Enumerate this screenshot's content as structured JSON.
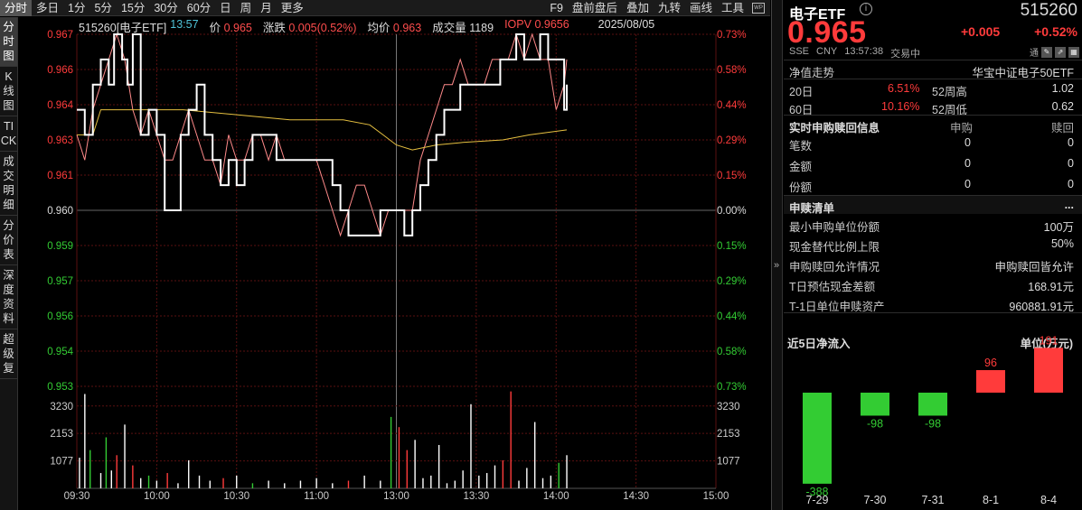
{
  "toolbar": {
    "left_tabs": [
      "分时",
      "多日",
      "1分",
      "5分",
      "15分",
      "30分",
      "60分",
      "日",
      "周",
      "月",
      "更多"
    ],
    "active_left": 0,
    "right_tabs": [
      "F9",
      "盘前盘后",
      "叠加",
      "九转",
      "画线",
      "工具"
    ],
    "wp_icon": "WP"
  },
  "side_tabs": [
    {
      "label": "分时图",
      "active": true
    },
    {
      "label": "K线图",
      "active": false
    },
    {
      "label": "TICK",
      "active": false
    },
    {
      "label": "成交明细",
      "active": false
    },
    {
      "label": "分价表",
      "active": false
    },
    {
      "label": "深度资料",
      "active": false
    },
    {
      "label": "超级复",
      "active": false
    }
  ],
  "infobar": {
    "code_name": "515260[电子ETF]",
    "time": "13:57",
    "price_label": "价",
    "price": "0.965",
    "change_label": "涨跌",
    "change": "0.005(0.52%)",
    "avg_label": "均价",
    "avg": "0.963",
    "volume_label": "成交量",
    "volume": "1189",
    "iopv_label": "IOPV",
    "iopv": "0.9656",
    "date": "2025/08/05"
  },
  "colors": {
    "up": "#ff3b3b",
    "down": "#33cc33",
    "price_line": "#ffffff",
    "iopv_line": "#ff8a8a",
    "avg_line": "#e6c040",
    "grid": "#5a1010"
  },
  "chart_data": [
    {
      "type": "line",
      "name": "intraday-price",
      "ylim": [
        0.953,
        0.967
      ],
      "prev_close": 0.96,
      "left_ticks": [
        "0.967",
        "0.966",
        "0.964",
        "0.963",
        "0.961",
        "0.960",
        "0.959",
        "0.957",
        "0.956",
        "0.954",
        "0.953"
      ],
      "right_ticks": [
        "0.73%",
        "0.58%",
        "0.44%",
        "0.29%",
        "0.15%",
        "0.00%",
        "0.15%",
        "0.29%",
        "0.44%",
        "0.58%",
        "0.73%"
      ],
      "x_ticks": [
        "09:30",
        "10:00",
        "10:30",
        "11:00",
        "13:00",
        "13:30",
        "14:00",
        "14:30",
        "15:00"
      ],
      "series": [
        {
          "name": "价",
          "points": [
            [
              0,
              0.964
            ],
            [
              3,
              0.963
            ],
            [
              6,
              0.965
            ],
            [
              9,
              0.966
            ],
            [
              12,
              0.965
            ],
            [
              14,
              0.967
            ],
            [
              17,
              0.966
            ],
            [
              19,
              0.965
            ],
            [
              21,
              0.967
            ],
            [
              24,
              0.963
            ],
            [
              27,
              0.964
            ],
            [
              30,
              0.963
            ],
            [
              33,
              0.96
            ],
            [
              36,
              0.96
            ],
            [
              39,
              0.963
            ],
            [
              42,
              0.964
            ],
            [
              45,
              0.965
            ],
            [
              48,
              0.963
            ],
            [
              51,
              0.962
            ],
            [
              54,
              0.961
            ],
            [
              57,
              0.962
            ],
            [
              60,
              0.961
            ],
            [
              63,
              0.962
            ],
            [
              66,
              0.963
            ],
            [
              69,
              0.963
            ],
            [
              72,
              0.963
            ],
            [
              75,
              0.962
            ],
            [
              78,
              0.962
            ],
            [
              81,
              0.962
            ],
            [
              84,
              0.962
            ],
            [
              87,
              0.962
            ],
            [
              90,
              0.962
            ],
            [
              93,
              0.962
            ],
            [
              96,
              0.961
            ],
            [
              99,
              0.96
            ],
            [
              102,
              0.959
            ],
            [
              105,
              0.959
            ],
            [
              108,
              0.959
            ],
            [
              111,
              0.959
            ],
            [
              114,
              0.96
            ],
            [
              117,
              0.96
            ],
            [
              120,
              0.96
            ],
            [
              123,
              0.959
            ],
            [
              126,
              0.96
            ],
            [
              129,
              0.961
            ],
            [
              132,
              0.962
            ],
            [
              135,
              0.963
            ],
            [
              138,
              0.964
            ],
            [
              141,
              0.964
            ],
            [
              144,
              0.965
            ],
            [
              147,
              0.965
            ],
            [
              150,
              0.965
            ],
            [
              153,
              0.965
            ],
            [
              156,
              0.965
            ],
            [
              159,
              0.966
            ],
            [
              162,
              0.966
            ],
            [
              165,
              0.967
            ],
            [
              168,
              0.966
            ],
            [
              171,
              0.966
            ],
            [
              174,
              0.967
            ],
            [
              177,
              0.966
            ],
            [
              180,
              0.966
            ],
            [
              183,
              0.964
            ],
            [
              184,
              0.965
            ]
          ]
        },
        {
          "name": "IOPV",
          "points": [
            [
              0,
              0.963
            ],
            [
              3,
              0.962
            ],
            [
              6,
              0.964
            ],
            [
              9,
              0.965
            ],
            [
              12,
              0.966
            ],
            [
              15,
              0.967
            ],
            [
              18,
              0.966
            ],
            [
              21,
              0.964
            ],
            [
              24,
              0.963
            ],
            [
              27,
              0.964
            ],
            [
              30,
              0.963
            ],
            [
              33,
              0.962
            ],
            [
              36,
              0.962
            ],
            [
              39,
              0.963
            ],
            [
              42,
              0.964
            ],
            [
              45,
              0.963
            ],
            [
              48,
              0.962
            ],
            [
              51,
              0.962
            ],
            [
              54,
              0.961
            ],
            [
              57,
              0.963
            ],
            [
              60,
              0.962
            ],
            [
              63,
              0.962
            ],
            [
              66,
              0.963
            ],
            [
              69,
              0.963
            ],
            [
              72,
              0.962
            ],
            [
              75,
              0.963
            ],
            [
              78,
              0.962
            ],
            [
              81,
              0.962
            ],
            [
              84,
              0.962
            ],
            [
              87,
              0.962
            ],
            [
              90,
              0.962
            ],
            [
              93,
              0.961
            ],
            [
              96,
              0.96
            ],
            [
              99,
              0.959
            ],
            [
              102,
              0.96
            ],
            [
              105,
              0.961
            ],
            [
              108,
              0.961
            ],
            [
              111,
              0.96
            ],
            [
              114,
              0.959
            ],
            [
              117,
              0.96
            ],
            [
              120,
              0.96
            ],
            [
              123,
              0.96
            ],
            [
              126,
              0.96
            ],
            [
              129,
              0.962
            ],
            [
              132,
              0.963
            ],
            [
              135,
              0.964
            ],
            [
              138,
              0.965
            ],
            [
              141,
              0.965
            ],
            [
              144,
              0.966
            ],
            [
              147,
              0.965
            ],
            [
              150,
              0.965
            ],
            [
              153,
              0.965
            ],
            [
              156,
              0.966
            ],
            [
              159,
              0.966
            ],
            [
              162,
              0.966
            ],
            [
              165,
              0.967
            ],
            [
              168,
              0.966
            ],
            [
              171,
              0.967
            ],
            [
              174,
              0.966
            ],
            [
              177,
              0.966
            ],
            [
              180,
              0.964
            ],
            [
              183,
              0.965
            ],
            [
              184,
              0.966
            ]
          ]
        },
        {
          "name": "均价",
          "points": [
            [
              0,
              0.963
            ],
            [
              3,
              0.963
            ],
            [
              6,
              0.963
            ],
            [
              9,
              0.964
            ],
            [
              12,
              0.964
            ],
            [
              15,
              0.964
            ],
            [
              20,
              0.964
            ],
            [
              30,
              0.964
            ],
            [
              40,
              0.964
            ],
            [
              60,
              0.9638
            ],
            [
              80,
              0.9636
            ],
            [
              100,
              0.9636
            ],
            [
              110,
              0.9634
            ],
            [
              115,
              0.963
            ],
            [
              120,
              0.9626
            ],
            [
              126,
              0.9624
            ],
            [
              135,
              0.9626
            ],
            [
              145,
              0.9627
            ],
            [
              160,
              0.9628
            ],
            [
              170,
              0.963
            ],
            [
              184,
              0.9632
            ]
          ]
        }
      ]
    },
    {
      "type": "bar",
      "name": "intraday-volume",
      "ylim": [
        0,
        4000
      ],
      "ticks": [
        "3230",
        "2153",
        "1077"
      ],
      "right_ticks": [
        "3230",
        "2153",
        "1077"
      ],
      "pct_label": "0.73%",
      "bars": [
        [
          1,
          1200,
          "w"
        ],
        [
          3,
          3700,
          "w"
        ],
        [
          5,
          1500,
          "g"
        ],
        [
          9,
          600,
          "w"
        ],
        [
          11,
          2000,
          "g"
        ],
        [
          13,
          700,
          "w"
        ],
        [
          15,
          1300,
          "r"
        ],
        [
          18,
          2500,
          "w"
        ],
        [
          21,
          900,
          "r"
        ],
        [
          24,
          400,
          "w"
        ],
        [
          27,
          500,
          "g"
        ],
        [
          30,
          300,
          "w"
        ],
        [
          34,
          600,
          "r"
        ],
        [
          38,
          200,
          "w"
        ],
        [
          42,
          1100,
          "w"
        ],
        [
          46,
          500,
          "w"
        ],
        [
          50,
          300,
          "w"
        ],
        [
          55,
          400,
          "r"
        ],
        [
          60,
          500,
          "w"
        ],
        [
          66,
          200,
          "g"
        ],
        [
          72,
          300,
          "w"
        ],
        [
          78,
          200,
          "w"
        ],
        [
          84,
          300,
          "w"
        ],
        [
          90,
          400,
          "w"
        ],
        [
          96,
          200,
          "w"
        ],
        [
          102,
          300,
          "r"
        ],
        [
          108,
          500,
          "w"
        ],
        [
          114,
          300,
          "w"
        ],
        [
          118,
          2800,
          "g"
        ],
        [
          121,
          2400,
          "r"
        ],
        [
          124,
          1500,
          "r"
        ],
        [
          127,
          1900,
          "w"
        ],
        [
          130,
          400,
          "w"
        ],
        [
          133,
          500,
          "w"
        ],
        [
          136,
          1700,
          "w"
        ],
        [
          139,
          200,
          "w"
        ],
        [
          142,
          300,
          "w"
        ],
        [
          145,
          700,
          "w"
        ],
        [
          148,
          3300,
          "w"
        ],
        [
          151,
          500,
          "w"
        ],
        [
          154,
          600,
          "w"
        ],
        [
          157,
          900,
          "w"
        ],
        [
          160,
          1100,
          "r"
        ],
        [
          163,
          3800,
          "r"
        ],
        [
          166,
          300,
          "w"
        ],
        [
          169,
          800,
          "w"
        ],
        [
          172,
          2600,
          "w"
        ],
        [
          175,
          400,
          "w"
        ],
        [
          178,
          500,
          "w"
        ],
        [
          181,
          1000,
          "g"
        ],
        [
          184,
          1300,
          "w"
        ]
      ]
    },
    {
      "type": "bar",
      "name": "net-inflow-5d",
      "title": "近5日净流入",
      "unit": "单位(万元)",
      "categories": [
        "7-29",
        "7-30",
        "7-31",
        "8-1",
        "8-4"
      ],
      "values": [
        -388,
        -98,
        -98,
        96,
        191
      ]
    }
  ],
  "panel": {
    "name": "电子ETF",
    "info_icon": "i",
    "code": "515260",
    "price": "0.965",
    "change": "+0.005",
    "change_pct": "+0.52%",
    "exchange": "SSE",
    "currency": "CNY",
    "time": "13:57:38",
    "status": "交易中",
    "tong": "通",
    "nav_label": "净值走势",
    "index_name": "华宝中证电子50ETF",
    "d20_label": "20日",
    "d20_value": "6.51%",
    "w52_high_label": "52周高",
    "w52_high": "1.02",
    "d60_label": "60日",
    "d60_value": "10.16%",
    "w52_low_label": "52周低",
    "w52_low": "0.62",
    "realtime_title": "实时申购赎回信息",
    "subscribe_label": "申购",
    "redeem_label": "赎回",
    "realtime_rows": [
      {
        "label": "笔数",
        "sub": "0",
        "red": "0"
      },
      {
        "label": "金额",
        "sub": "0",
        "red": "0"
      },
      {
        "label": "份额",
        "sub": "0",
        "red": "0"
      }
    ],
    "list_title": "申赎清单",
    "more": "...",
    "list_rows": [
      {
        "label": "最小申购单位份额",
        "value": "100万"
      },
      {
        "label": "现金替代比例上限",
        "value": "50%"
      },
      {
        "label": "申购赎回允许情况",
        "value": "申购赎回皆允许"
      },
      {
        "label": "T日预估现金差额",
        "value": "168.91元"
      },
      {
        "label": "T-1日单位申赎资产",
        "value": "960881.91元"
      }
    ],
    "expander": "»"
  }
}
